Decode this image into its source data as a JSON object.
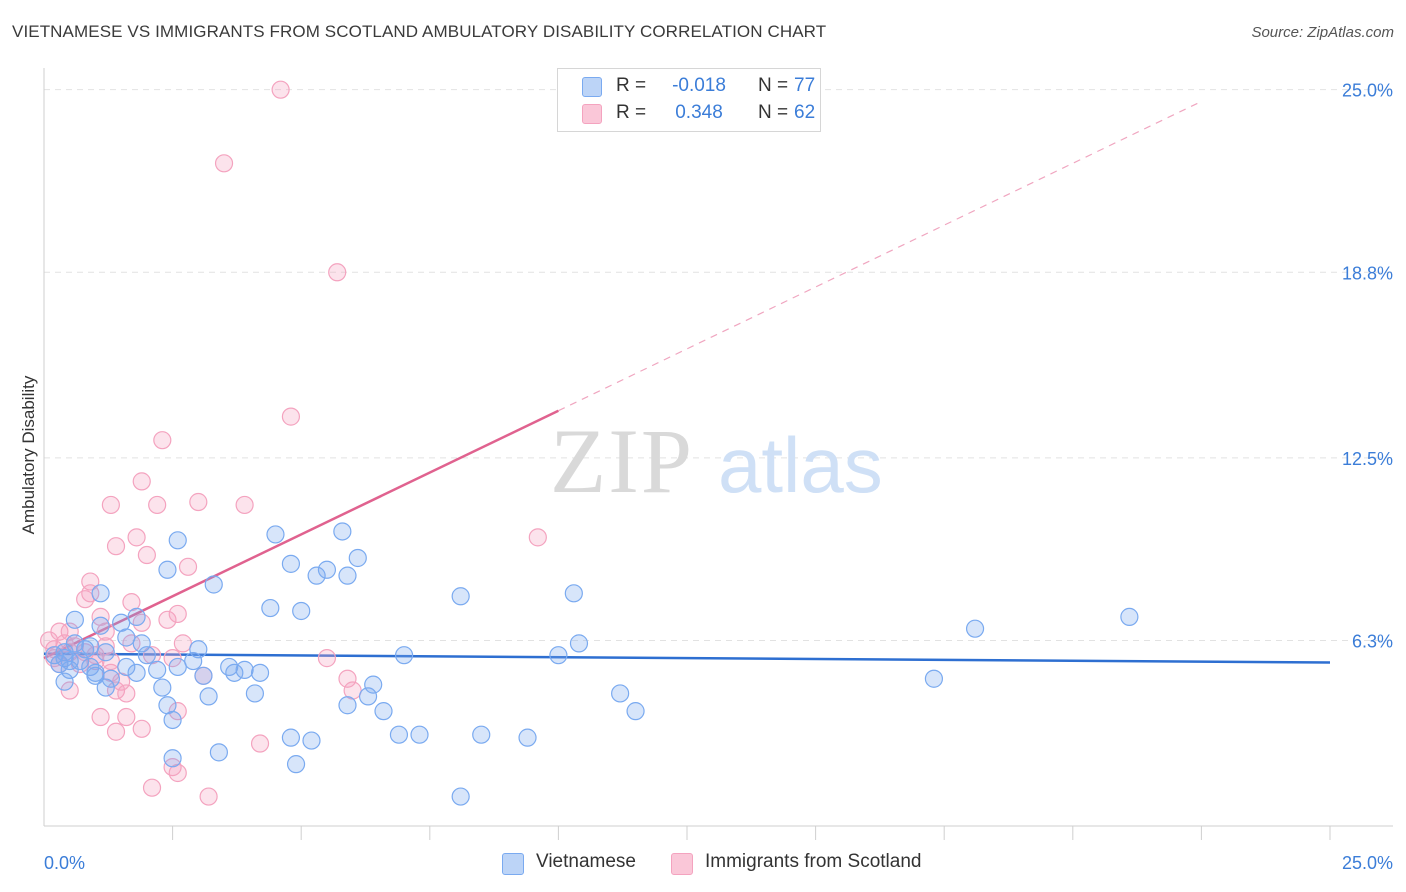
{
  "title": "VIETNAMESE VS IMMIGRANTS FROM SCOTLAND AMBULATORY DISABILITY CORRELATION CHART",
  "source": "Source: ZipAtlas.com",
  "watermark": {
    "zip": "ZIP",
    "atlas": "atlas"
  },
  "legend": {
    "r_label": "R =",
    "n_label": "N =",
    "rows": [
      {
        "name": "Vietnamese",
        "r": "-0.018",
        "n": "77"
      },
      {
        "name": "Immigrants from Scotland",
        "r": "0.348",
        "n": "62"
      }
    ]
  },
  "chart_data": {
    "type": "scatter",
    "title": "VIETNAMESE VS IMMIGRANTS FROM SCOTLAND AMBULATORY DISABILITY CORRELATION CHART",
    "xlabel": "",
    "ylabel": "Ambulatory Disability",
    "xlim": [
      0,
      25
    ],
    "ylim": [
      0,
      25.6
    ],
    "x_tick_labels": [
      "0.0%",
      "25.0%"
    ],
    "y_ticks": [
      6.3,
      12.5,
      18.8,
      25.0
    ],
    "y_tick_labels": [
      "6.3%",
      "12.5%",
      "18.8%",
      "25.0%"
    ],
    "colors": {
      "vietnamese": "#7aaaf0",
      "vietnamese_line": "#2e6fd1",
      "scotland": "#f4a3bf",
      "scotland_line": "#e0628f",
      "tick_label": "#3b7dd8",
      "grid": "#e2e2e2"
    },
    "series": [
      {
        "name": "Vietnamese",
        "color": "#7aaaf0",
        "trend": {
          "x": [
            0,
            25
          ],
          "y": [
            5.85,
            5.55
          ]
        },
        "points": [
          [
            0.2,
            5.8
          ],
          [
            0.3,
            5.5
          ],
          [
            0.4,
            5.9
          ],
          [
            0.4,
            5.7
          ],
          [
            0.5,
            5.6
          ],
          [
            0.5,
            5.3
          ],
          [
            0.6,
            6.2
          ],
          [
            0.7,
            5.6
          ],
          [
            0.8,
            6.0
          ],
          [
            0.9,
            5.4
          ],
          [
            1.0,
            5.1
          ],
          [
            0.4,
            4.9
          ],
          [
            0.6,
            7.0
          ],
          [
            0.9,
            6.1
          ],
          [
            1.0,
            5.2
          ],
          [
            1.1,
            6.8
          ],
          [
            1.2,
            5.9
          ],
          [
            1.5,
            6.9
          ],
          [
            1.6,
            6.4
          ],
          [
            1.6,
            5.4
          ],
          [
            1.3,
            5.0
          ],
          [
            1.2,
            4.7
          ],
          [
            1.1,
            7.9
          ],
          [
            1.8,
            5.2
          ],
          [
            1.9,
            6.2
          ],
          [
            2.0,
            5.8
          ],
          [
            2.2,
            5.3
          ],
          [
            2.3,
            4.7
          ],
          [
            2.4,
            4.1
          ],
          [
            2.4,
            8.7
          ],
          [
            2.6,
            9.7
          ],
          [
            2.6,
            5.4
          ],
          [
            2.9,
            5.6
          ],
          [
            3.0,
            6.0
          ],
          [
            3.1,
            5.1
          ],
          [
            3.2,
            4.4
          ],
          [
            3.3,
            8.2
          ],
          [
            3.6,
            5.4
          ],
          [
            3.7,
            5.2
          ],
          [
            3.9,
            5.3
          ],
          [
            4.1,
            4.5
          ],
          [
            4.2,
            5.2
          ],
          [
            4.4,
            7.4
          ],
          [
            4.5,
            9.9
          ],
          [
            4.8,
            8.9
          ],
          [
            5.0,
            7.3
          ],
          [
            5.3,
            8.5
          ],
          [
            5.5,
            8.7
          ],
          [
            5.8,
            10.0
          ],
          [
            5.9,
            8.5
          ],
          [
            5.9,
            4.1
          ],
          [
            6.1,
            9.1
          ],
          [
            6.3,
            4.4
          ],
          [
            6.4,
            4.8
          ],
          [
            6.6,
            3.9
          ],
          [
            7.0,
            5.8
          ],
          [
            7.3,
            3.1
          ],
          [
            6.9,
            3.1
          ],
          [
            2.5,
            3.6
          ],
          [
            4.8,
            3.0
          ],
          [
            5.2,
            2.9
          ],
          [
            3.4,
            2.5
          ],
          [
            2.5,
            2.3
          ],
          [
            4.9,
            2.1
          ],
          [
            8.1,
            7.8
          ],
          [
            10.0,
            5.8
          ],
          [
            10.4,
            6.2
          ],
          [
            10.3,
            7.9
          ],
          [
            11.2,
            4.5
          ],
          [
            11.5,
            3.9
          ],
          [
            17.3,
            5.0
          ],
          [
            18.1,
            6.7
          ],
          [
            21.1,
            7.1
          ],
          [
            8.5,
            3.1
          ],
          [
            9.4,
            3.0
          ],
          [
            8.1,
            1.0
          ],
          [
            1.8,
            7.1
          ]
        ]
      },
      {
        "name": "Immigrants from Scotland",
        "color": "#f4a3bf",
        "trend": {
          "x": [
            0,
            10
          ],
          "y": [
            5.7,
            14.1
          ]
        },
        "trend_dashed": {
          "x": [
            10,
            22.5
          ],
          "y": [
            14.1,
            24.6
          ]
        },
        "points": [
          [
            0.1,
            6.3
          ],
          [
            0.2,
            6.0
          ],
          [
            0.2,
            5.7
          ],
          [
            0.3,
            6.6
          ],
          [
            0.3,
            5.5
          ],
          [
            0.4,
            6.2
          ],
          [
            0.5,
            5.9
          ],
          [
            0.5,
            6.6
          ],
          [
            0.6,
            6.1
          ],
          [
            0.7,
            5.5
          ],
          [
            0.8,
            5.9
          ],
          [
            0.8,
            7.7
          ],
          [
            0.9,
            8.3
          ],
          [
            0.9,
            7.9
          ],
          [
            1.0,
            5.8
          ],
          [
            1.0,
            5.6
          ],
          [
            1.1,
            7.1
          ],
          [
            1.2,
            6.6
          ],
          [
            1.2,
            6.1
          ],
          [
            1.3,
            5.6
          ],
          [
            1.3,
            5.2
          ],
          [
            1.3,
            10.9
          ],
          [
            1.4,
            9.5
          ],
          [
            1.4,
            4.6
          ],
          [
            1.5,
            4.9
          ],
          [
            1.6,
            4.5
          ],
          [
            1.6,
            3.7
          ],
          [
            1.7,
            7.6
          ],
          [
            1.7,
            6.2
          ],
          [
            1.8,
            9.8
          ],
          [
            1.9,
            6.9
          ],
          [
            1.9,
            11.7
          ],
          [
            2.0,
            9.2
          ],
          [
            2.1,
            5.8
          ],
          [
            2.2,
            10.9
          ],
          [
            2.3,
            13.1
          ],
          [
            2.4,
            7.0
          ],
          [
            2.5,
            5.7
          ],
          [
            2.6,
            7.2
          ],
          [
            2.6,
            3.9
          ],
          [
            2.7,
            6.2
          ],
          [
            2.8,
            8.8
          ],
          [
            3.0,
            11.0
          ],
          [
            3.1,
            5.1
          ],
          [
            3.5,
            22.5
          ],
          [
            3.9,
            10.9
          ],
          [
            4.2,
            2.8
          ],
          [
            4.6,
            25.0
          ],
          [
            4.8,
            13.9
          ],
          [
            5.5,
            5.7
          ],
          [
            5.7,
            18.8
          ],
          [
            5.9,
            5.0
          ],
          [
            6.0,
            4.6
          ],
          [
            9.6,
            9.8
          ],
          [
            0.5,
            4.6
          ],
          [
            1.1,
            3.7
          ],
          [
            1.4,
            3.2
          ],
          [
            1.9,
            3.3
          ],
          [
            2.5,
            2.0
          ],
          [
            2.6,
            1.8
          ],
          [
            3.2,
            1.0
          ],
          [
            2.1,
            1.3
          ]
        ]
      }
    ]
  }
}
